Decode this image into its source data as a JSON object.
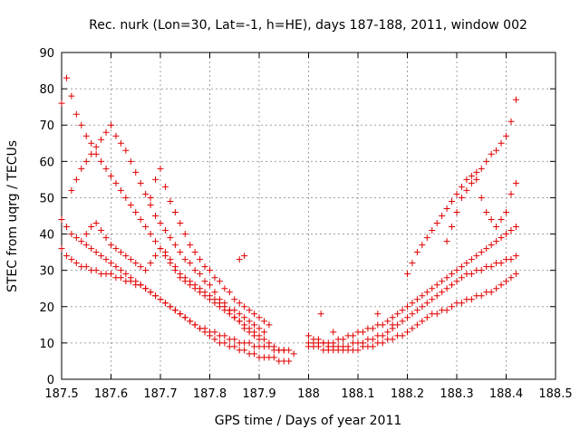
{
  "chart_data": {
    "type": "scatter",
    "title": "Rec. nurk (Lon=30, Lat=-1, h=HE), days 187-188, 2011, window 002",
    "xlabel": "GPS time / Days of year 2011",
    "ylabel": "STEC from uqrg / TECUs",
    "xlim": [
      187.5,
      188.5
    ],
    "ylim": [
      0,
      90
    ],
    "x_ticks": [
      187.5,
      187.6,
      187.7,
      187.8,
      187.9,
      188.0,
      188.1,
      188.2,
      188.3,
      188.4,
      188.5
    ],
    "x_tick_labels": [
      "187.5",
      "187.6",
      "187.7",
      "187.8",
      "187.9",
      "188",
      "188.1",
      "188.2",
      "188.3",
      "188.4",
      "188.5"
    ],
    "y_ticks": [
      0,
      10,
      20,
      30,
      40,
      50,
      60,
      70,
      80,
      90
    ],
    "y_tick_labels": [
      "0",
      "10",
      "20",
      "30",
      "40",
      "50",
      "60",
      "70",
      "80",
      "90"
    ],
    "grid": true,
    "marker": "+",
    "color": "#e00000",
    "series": [
      {
        "name": "s1",
        "x": [
          187.5,
          187.51,
          187.52,
          187.53,
          187.54,
          187.55,
          187.56,
          187.57,
          187.58,
          187.59,
          187.6,
          187.61,
          187.62,
          187.63,
          187.64,
          187.65,
          187.66,
          187.67,
          187.68,
          187.69,
          187.7,
          187.71,
          187.72,
          187.73,
          187.74,
          187.75,
          187.76,
          187.77,
          187.78,
          187.79,
          187.8,
          187.81,
          187.82,
          187.83,
          187.84,
          187.85,
          187.86,
          187.87,
          187.88,
          187.89,
          187.9,
          187.91,
          187.92,
          187.93,
          187.94,
          187.95
        ],
        "y": [
          76,
          83,
          78,
          73,
          70,
          67,
          65,
          62,
          60,
          58,
          56,
          54,
          52,
          50,
          48,
          46,
          44,
          42,
          40,
          38,
          36,
          34,
          32,
          30,
          28,
          27,
          26,
          25,
          24,
          23,
          22,
          21,
          20,
          19,
          18,
          17,
          16,
          15,
          14,
          13,
          12,
          11,
          10,
          9,
          8,
          8
        ]
      },
      {
        "name": "s2",
        "x": [
          187.52,
          187.53,
          187.54,
          187.55,
          187.56,
          187.57,
          187.58,
          187.59,
          187.6,
          187.61,
          187.62,
          187.63,
          187.64,
          187.65,
          187.66,
          187.67,
          187.68,
          187.69,
          187.7,
          187.71,
          187.72,
          187.73,
          187.74,
          187.75,
          187.76,
          187.77,
          187.78,
          187.79,
          187.8,
          187.81,
          187.82,
          187.83,
          187.84,
          187.85,
          187.86,
          187.87,
          187.88,
          187.89,
          187.9
        ],
        "y": [
          52,
          55,
          58,
          60,
          62,
          64,
          66,
          68,
          70,
          67,
          65,
          63,
          60,
          57,
          54,
          51,
          48,
          45,
          43,
          41,
          39,
          37,
          35,
          33,
          32,
          30,
          29,
          27,
          26,
          24,
          22,
          21,
          19,
          17,
          16,
          14,
          13,
          12,
          11
        ]
      },
      {
        "name": "s3",
        "x": [
          187.5,
          187.51,
          187.52,
          187.53,
          187.54,
          187.55,
          187.56,
          187.57,
          187.58,
          187.59,
          187.6,
          187.61,
          187.62,
          187.63,
          187.64,
          187.65,
          187.66,
          187.67,
          187.68,
          187.69,
          187.7,
          187.71,
          187.72,
          187.73,
          187.74,
          187.75,
          187.76,
          187.77,
          187.78,
          187.79,
          187.8,
          187.81,
          187.82,
          187.83,
          187.84,
          187.85,
          187.86,
          187.87,
          187.88,
          187.89,
          187.9,
          187.91,
          187.92,
          187.93,
          187.94,
          187.95,
          187.96,
          187.97
        ],
        "y": [
          44,
          42,
          40,
          39,
          38,
          37,
          36,
          35,
          34,
          33,
          32,
          31,
          30,
          29,
          28,
          27,
          26,
          25,
          24,
          23,
          22,
          21,
          20,
          19,
          18,
          17,
          16,
          15,
          14,
          14,
          13,
          13,
          12,
          12,
          11,
          11,
          10,
          10,
          10,
          9,
          9,
          9,
          9,
          8,
          8,
          8,
          8,
          7
        ]
      },
      {
        "name": "s4",
        "x": [
          187.5,
          187.51,
          187.52,
          187.53,
          187.54,
          187.55,
          187.56,
          187.57,
          187.58,
          187.59,
          187.6,
          187.61,
          187.62,
          187.63,
          187.64,
          187.65,
          187.66,
          187.67,
          187.68,
          187.69,
          187.7,
          187.71,
          187.72,
          187.73,
          187.74,
          187.75,
          187.76,
          187.77,
          187.78,
          187.79,
          187.8,
          187.81,
          187.82,
          187.83,
          187.84,
          187.85,
          187.86,
          187.87,
          187.88,
          187.89,
          187.9,
          187.91,
          187.92,
          187.93,
          187.94,
          187.95,
          187.96
        ],
        "y": [
          36,
          34,
          33,
          32,
          31,
          31,
          30,
          30,
          29,
          29,
          29,
          28,
          28,
          27,
          27,
          26,
          26,
          25,
          24,
          23,
          22,
          21,
          20,
          19,
          18,
          17,
          16,
          15,
          14,
          13,
          12,
          11,
          10,
          10,
          9,
          9,
          8,
          8,
          7,
          7,
          6,
          6,
          6,
          6,
          5,
          5,
          5
        ]
      },
      {
        "name": "s5",
        "x": [
          187.55,
          187.56,
          187.57,
          187.58,
          187.59,
          187.6,
          187.61,
          187.62,
          187.63,
          187.64,
          187.65,
          187.66,
          187.67,
          187.68,
          187.69,
          187.7,
          187.71,
          187.72,
          187.73,
          187.74,
          187.75,
          187.76,
          187.77,
          187.78,
          187.79,
          187.8,
          187.81,
          187.82,
          187.83,
          187.84,
          187.85,
          187.86,
          187.87,
          187.88,
          187.89,
          187.9,
          187.91
        ],
        "y": [
          40,
          42,
          43,
          41,
          39,
          37,
          36,
          35,
          34,
          33,
          32,
          31,
          30,
          32,
          34,
          36,
          35,
          33,
          31,
          29,
          28,
          27,
          26,
          25,
          24,
          23,
          22,
          21,
          20,
          19,
          19,
          18,
          17,
          16,
          15,
          14,
          13
        ]
      },
      {
        "name": "s6",
        "x": [
          187.68,
          187.69,
          187.7,
          187.71,
          187.72,
          187.73,
          187.74,
          187.75,
          187.76,
          187.77,
          187.78,
          187.79,
          187.8,
          187.81,
          187.82,
          187.83,
          187.84,
          187.85,
          187.86,
          187.87,
          187.88,
          187.89,
          187.9,
          187.91,
          187.92
        ],
        "y": [
          50,
          55,
          58,
          53,
          49,
          46,
          43,
          40,
          37,
          35,
          33,
          31,
          30,
          28,
          27,
          25,
          24,
          22,
          21,
          20,
          19,
          18,
          17,
          16,
          15
        ]
      },
      {
        "name": "s7",
        "x": [
          188.0,
          188.01,
          188.02,
          188.03,
          188.04,
          188.05,
          188.06,
          188.07,
          188.08,
          188.09,
          188.1,
          188.11,
          188.12,
          188.13,
          188.14,
          188.15,
          188.16,
          188.17,
          188.18,
          188.19,
          188.2,
          188.21,
          188.22,
          188.23,
          188.24,
          188.25,
          188.26,
          188.27,
          188.28,
          188.29,
          188.3,
          188.31,
          188.32,
          188.33,
          188.34,
          188.35,
          188.36,
          188.37,
          188.38,
          188.39,
          188.4,
          188.41,
          188.42
        ],
        "y": [
          9,
          9,
          9,
          8,
          8,
          8,
          8,
          8,
          8,
          8,
          8,
          9,
          9,
          9,
          10,
          10,
          11,
          11,
          12,
          12,
          13,
          14,
          15,
          16,
          17,
          18,
          18,
          19,
          19,
          20,
          21,
          21,
          22,
          22,
          23,
          23,
          24,
          24,
          25,
          26,
          27,
          28,
          29
        ]
      },
      {
        "name": "s8",
        "x": [
          188.0,
          188.01,
          188.02,
          188.03,
          188.04,
          188.05,
          188.06,
          188.07,
          188.08,
          188.09,
          188.1,
          188.11,
          188.12,
          188.13,
          188.14,
          188.15,
          188.16,
          188.17,
          188.18,
          188.19,
          188.2,
          188.21,
          188.22,
          188.23,
          188.24,
          188.25,
          188.26,
          188.27,
          188.28,
          188.29,
          188.3,
          188.31,
          188.32,
          188.33,
          188.34,
          188.35,
          188.36,
          188.37,
          188.38,
          188.39,
          188.4,
          188.41,
          188.42
        ],
        "y": [
          10,
          10,
          10,
          10,
          9,
          9,
          9,
          9,
          9,
          10,
          10,
          10,
          11,
          11,
          12,
          12,
          13,
          14,
          15,
          16,
          17,
          18,
          19,
          20,
          21,
          22,
          23,
          24,
          25,
          26,
          27,
          28,
          29,
          29,
          30,
          30,
          31,
          31,
          32,
          32,
          33,
          33,
          34
        ]
      },
      {
        "name": "s9",
        "x": [
          188.0,
          188.01,
          188.02,
          188.03,
          188.04,
          188.05,
          188.06,
          188.07,
          188.08,
          188.09,
          188.1,
          188.11,
          188.12,
          188.13,
          188.14,
          188.15,
          188.16,
          188.17,
          188.18,
          188.19,
          188.2,
          188.21,
          188.22,
          188.23,
          188.24,
          188.25,
          188.26,
          188.27,
          188.28,
          188.29,
          188.3,
          188.31,
          188.32,
          188.33,
          188.34,
          188.35,
          188.36,
          188.37,
          188.38,
          188.39,
          188.4,
          188.41,
          188.42
        ],
        "y": [
          12,
          11,
          11,
          10,
          10,
          10,
          11,
          11,
          12,
          12,
          13,
          13,
          14,
          14,
          15,
          15,
          16,
          17,
          18,
          19,
          20,
          21,
          22,
          23,
          24,
          25,
          26,
          27,
          28,
          29,
          30,
          31,
          32,
          33,
          34,
          35,
          36,
          37,
          38,
          39,
          40,
          41,
          42
        ]
      },
      {
        "name": "s10",
        "x": [
          188.2,
          188.21,
          188.22,
          188.23,
          188.24,
          188.25,
          188.26,
          188.27,
          188.28,
          188.29,
          188.3,
          188.31,
          188.32,
          188.33,
          188.34,
          188.35,
          188.36,
          188.37,
          188.38,
          188.39,
          188.4,
          188.41,
          188.42
        ],
        "y": [
          29,
          32,
          35,
          37,
          39,
          41,
          43,
          45,
          47,
          49,
          51,
          53,
          55,
          56,
          57,
          58,
          60,
          62,
          63,
          65,
          67,
          71,
          77
        ]
      },
      {
        "name": "s11",
        "x": [
          188.28,
          188.29,
          188.3,
          188.31,
          188.32,
          188.33,
          188.34,
          188.35,
          188.36,
          188.37,
          188.38,
          188.39,
          188.4,
          188.41,
          188.42
        ],
        "y": [
          38,
          42,
          46,
          50,
          52,
          54,
          55,
          50,
          46,
          44,
          42,
          44,
          46,
          51,
          54
        ]
      }
    ],
    "extra_points": {
      "x": [
        187.86,
        187.87,
        188.025,
        188.05,
        188.14,
        188.17
      ],
      "y": [
        33,
        34,
        18,
        13,
        18,
        15
      ]
    }
  }
}
